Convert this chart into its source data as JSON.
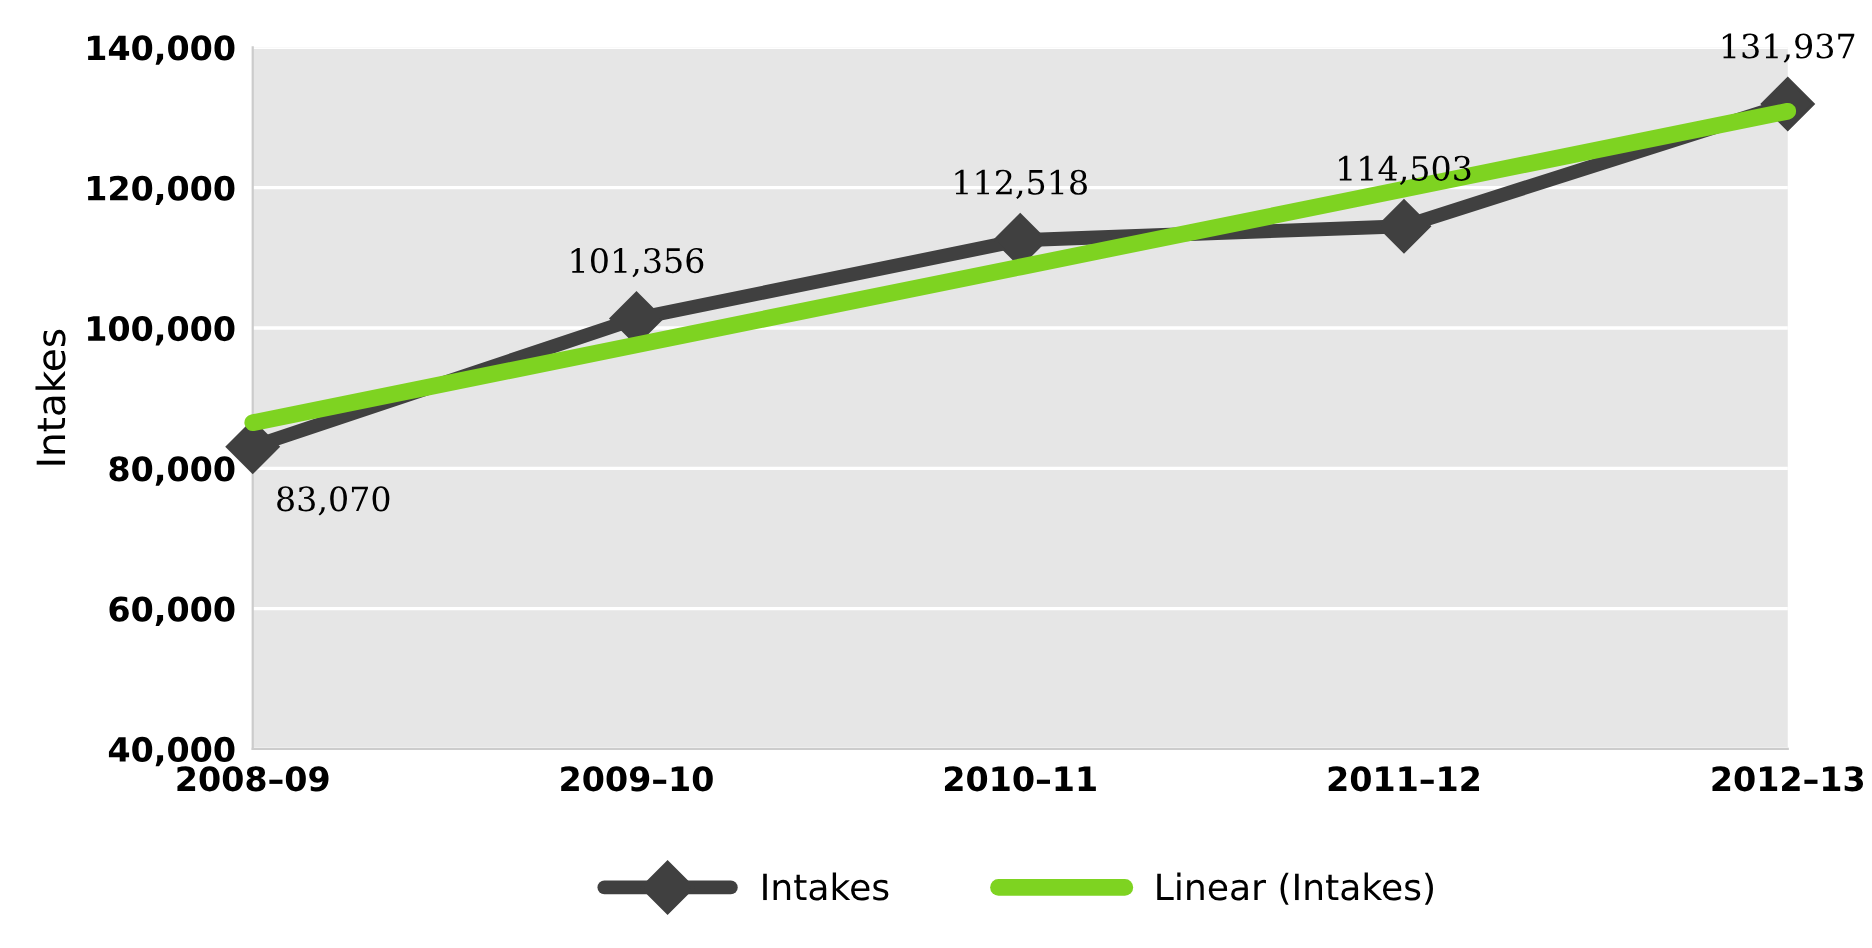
{
  "chart_data": {
    "type": "line",
    "ylabel": "Intakes",
    "categories": [
      "2008–09",
      "2009–10",
      "2010–11",
      "2011–12",
      "2012–13"
    ],
    "series": [
      {
        "name": "Linear (Intakes)",
        "color": "#7ed321",
        "values": [
          86500,
          97600,
          108700,
          119800,
          130900
        ],
        "marker": "none"
      },
      {
        "name": "Intakes",
        "color": "#404040",
        "values": [
          83070,
          101356,
          112518,
          114503,
          131937
        ],
        "marker": "diamond",
        "value_labels": [
          "83,070",
          "101,356",
          "112,518",
          "114,503",
          "131,937"
        ]
      }
    ],
    "ylim": [
      40000,
      140000
    ],
    "yticks": [
      {
        "value": 40000,
        "label": "40,000"
      },
      {
        "value": 60000,
        "label": "60,000"
      },
      {
        "value": 80000,
        "label": "80,000"
      },
      {
        "value": 100000,
        "label": "100,000"
      },
      {
        "value": 120000,
        "label": "120,000"
      },
      {
        "value": 140000,
        "label": "140,000"
      }
    ],
    "grid": "y",
    "legend": "bottom",
    "line_style": "solid"
  }
}
